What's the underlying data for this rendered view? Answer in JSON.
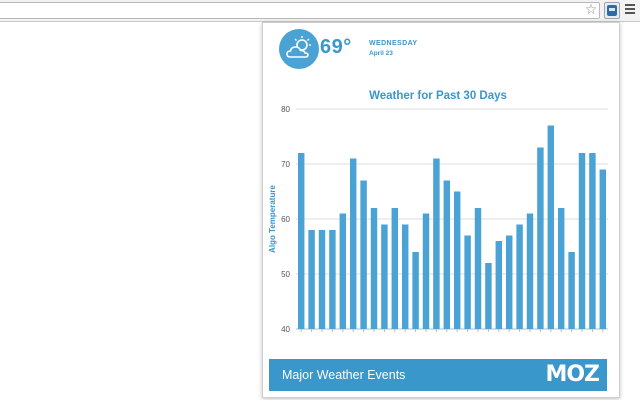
{
  "browser": {
    "star_icon": "star-icon",
    "extension_icon": "moz-robot-icon",
    "menu_icon": "hamburger-menu-icon"
  },
  "weather": {
    "icon": "partly-cloudy-icon",
    "temperature": "69°",
    "weekday": "WEDNESDAY",
    "date": "April 23"
  },
  "chart_data": {
    "type": "bar",
    "title": "Weather for Past 30 Days",
    "ylabel": "Algo Temperature",
    "xlabel": "",
    "ylim": [
      40,
      80
    ],
    "yticks": [
      "40",
      "50",
      "60",
      "70",
      "80"
    ],
    "grid": true,
    "color": "#4aa3d4",
    "values": [
      72,
      58,
      58,
      58,
      61,
      71,
      67,
      62,
      59,
      62,
      59,
      54,
      61,
      71,
      67,
      65,
      57,
      62,
      52,
      56,
      57,
      59,
      61,
      73,
      77,
      62,
      54,
      72,
      72,
      69
    ]
  },
  "footer": {
    "label": "Major Weather Events",
    "logo": "MOZ"
  },
  "colors": {
    "accent": "#3a97cc",
    "bar": "#4aa3d4"
  }
}
